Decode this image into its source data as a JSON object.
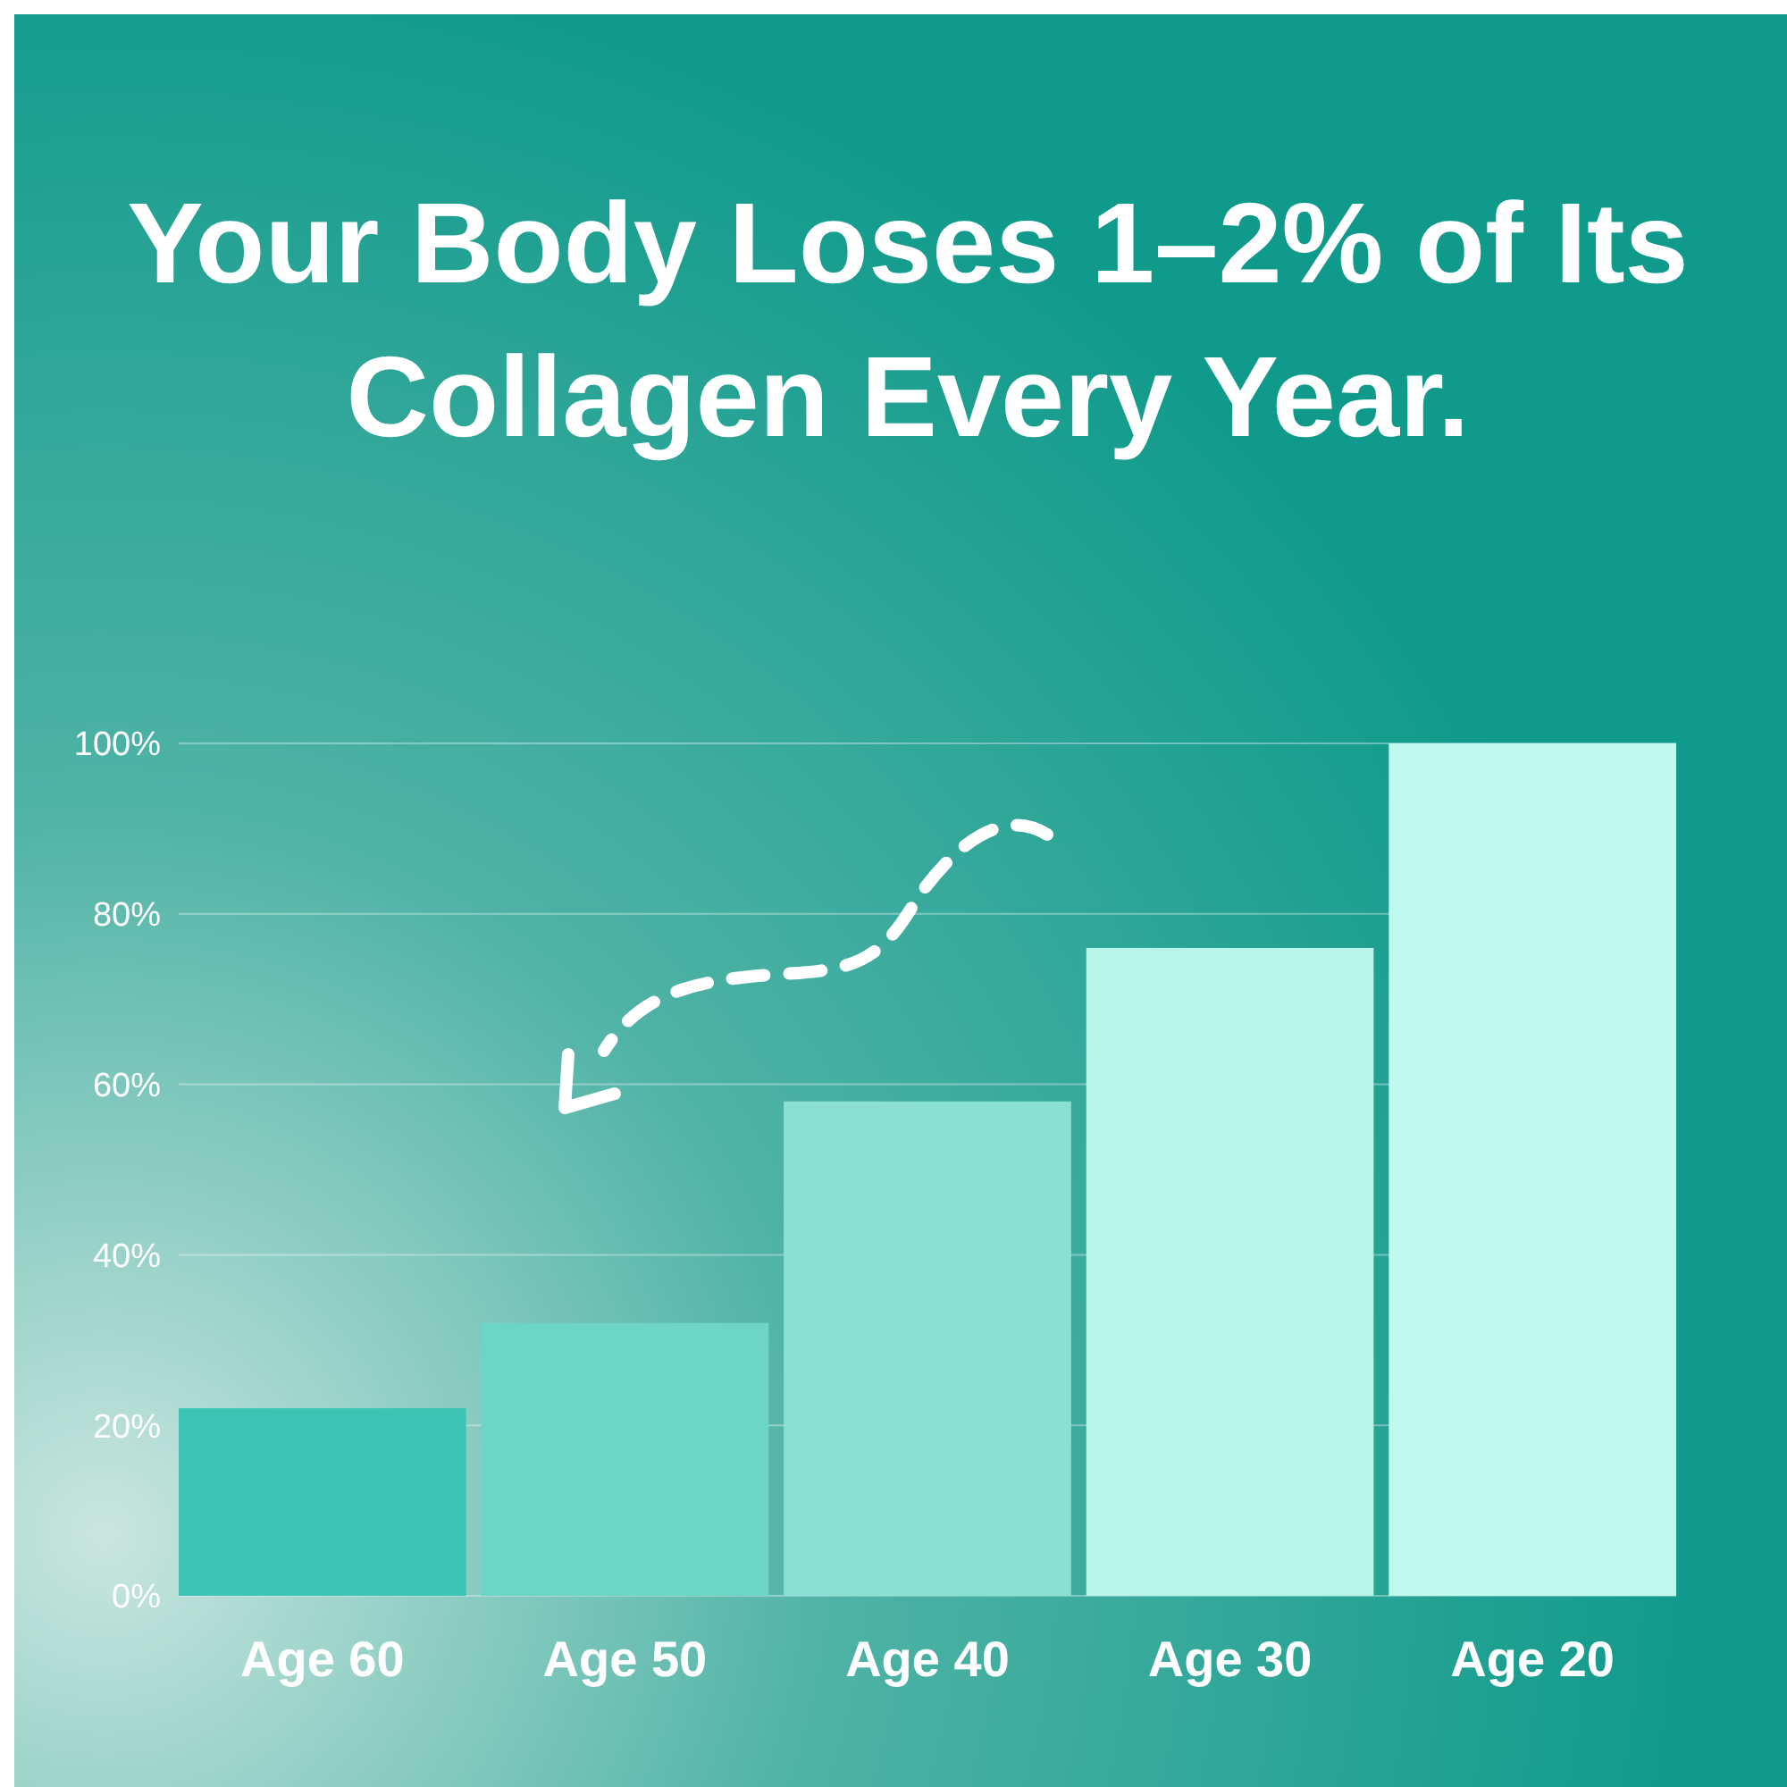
{
  "chart_data": {
    "type": "bar",
    "title": "Your Body Loses 1–2% of Its Collagen Every Year.",
    "categories": [
      "Age 60",
      "Age 50",
      "Age 40",
      "Age 30",
      "Age 20"
    ],
    "values": [
      22,
      32,
      58,
      76,
      100
    ],
    "colors": [
      "#3ec4b4",
      "#6dd5c6",
      "#8ae0d2",
      "#b8f5e9",
      "#c0faee"
    ],
    "ylim": [
      0,
      100
    ],
    "yticks": [
      {
        "value": 0,
        "label": "0%"
      },
      {
        "value": 20,
        "label": "20%"
      },
      {
        "value": 40,
        "label": "40%"
      },
      {
        "value": 60,
        "label": "60%"
      },
      {
        "value": 80,
        "label": "80%"
      },
      {
        "value": 100,
        "label": "100%"
      }
    ],
    "grid": "y"
  }
}
